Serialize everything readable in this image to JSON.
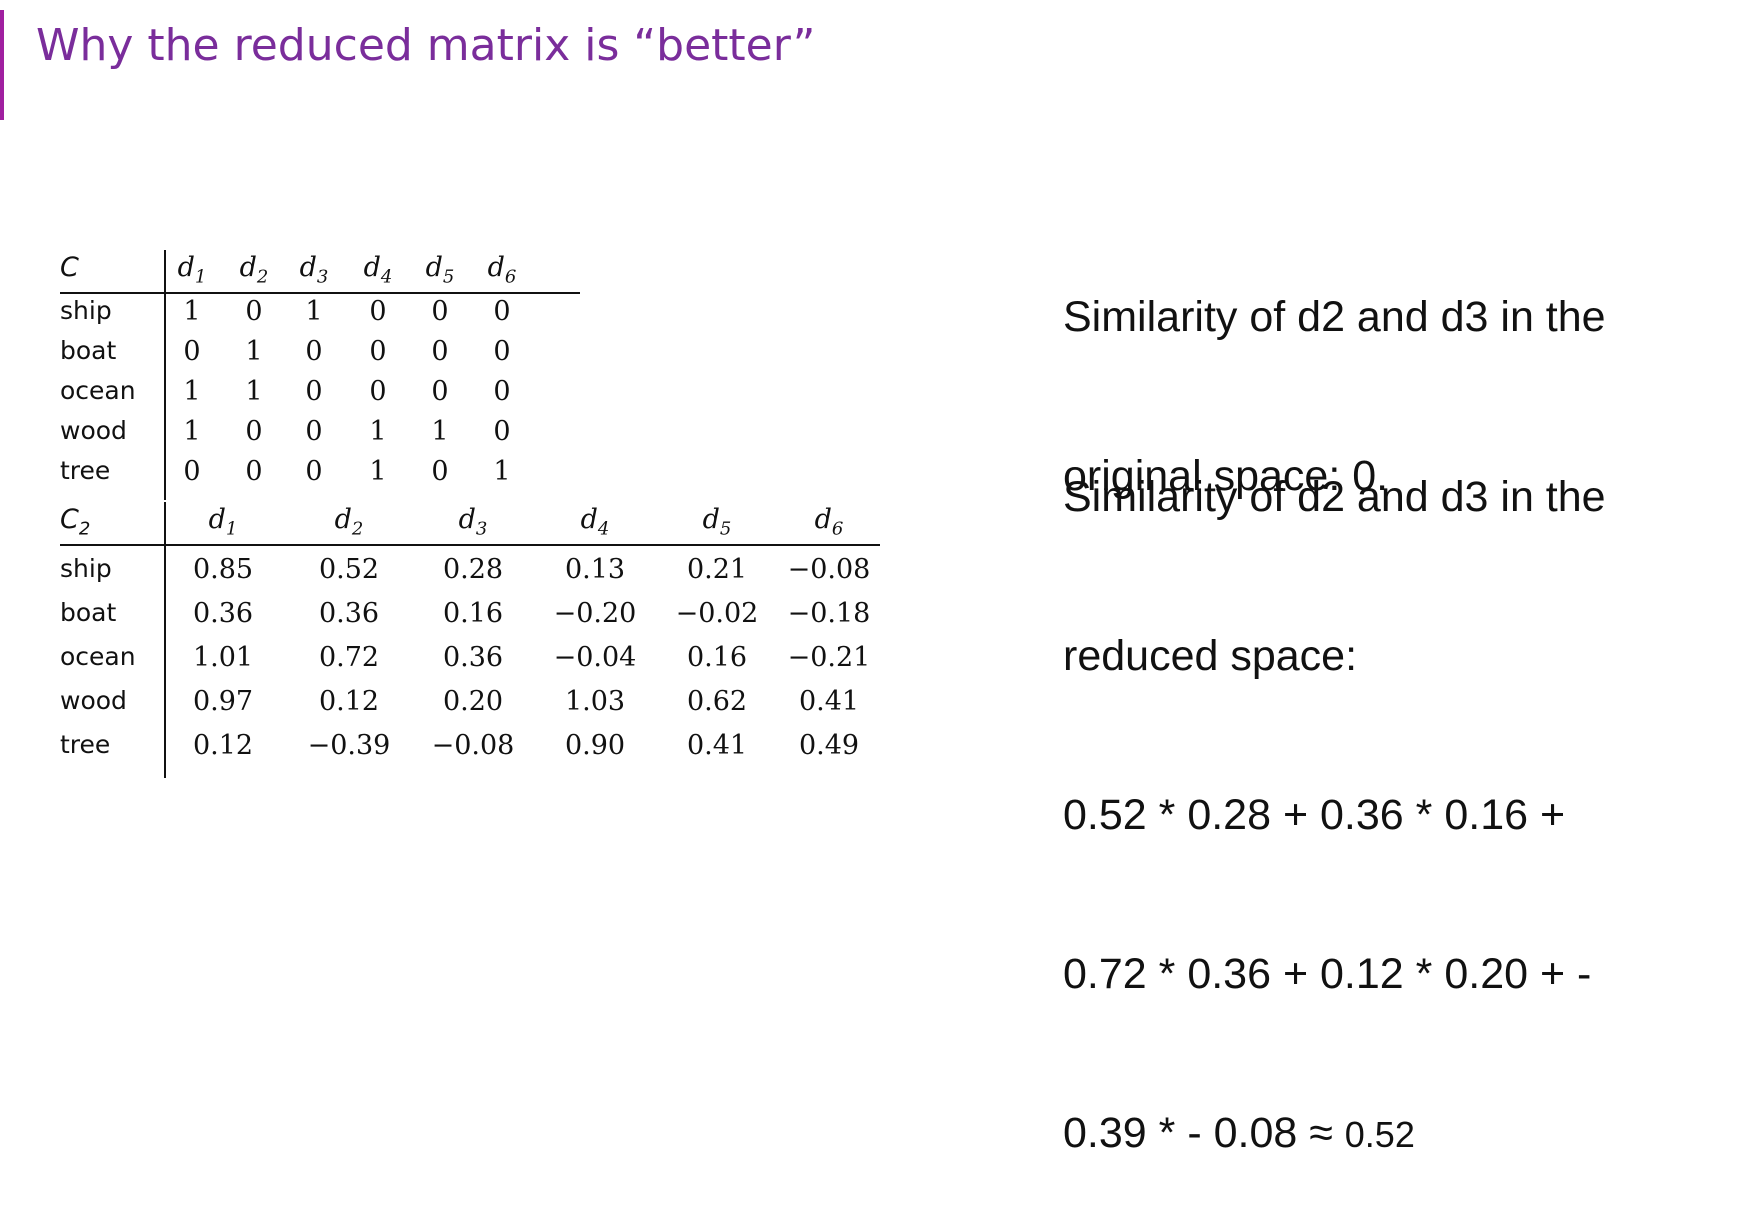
{
  "slide": {
    "title": "Why the reduced matrix is “better”"
  },
  "matrix_c": {
    "name": "C",
    "columns": [
      "d1",
      "d2",
      "d3",
      "d4",
      "d5",
      "d6"
    ],
    "rows": [
      {
        "label": "ship",
        "values": [
          "1",
          "0",
          "1",
          "0",
          "0",
          "0"
        ]
      },
      {
        "label": "boat",
        "values": [
          "0",
          "1",
          "0",
          "0",
          "0",
          "0"
        ]
      },
      {
        "label": "ocean",
        "values": [
          "1",
          "1",
          "0",
          "0",
          "0",
          "0"
        ]
      },
      {
        "label": "wood",
        "values": [
          "1",
          "0",
          "0",
          "1",
          "1",
          "0"
        ]
      },
      {
        "label": "tree",
        "values": [
          "0",
          "0",
          "0",
          "1",
          "0",
          "1"
        ]
      }
    ]
  },
  "matrix_c2": {
    "name": "C",
    "name_sub": "2",
    "columns": [
      "d1",
      "d2",
      "d3",
      "d4",
      "d5",
      "d6"
    ],
    "rows": [
      {
        "label": "ship",
        "values": [
          "0.85",
          "0.52",
          "0.28",
          "0.13",
          "0.21",
          "−0.08"
        ]
      },
      {
        "label": "boat",
        "values": [
          "0.36",
          "0.36",
          "0.16",
          "−0.20",
          "−0.02",
          "−0.18"
        ]
      },
      {
        "label": "ocean",
        "values": [
          "1.01",
          "0.72",
          "0.36",
          "−0.04",
          "0.16",
          "−0.21"
        ]
      },
      {
        "label": "wood",
        "values": [
          "0.97",
          "0.12",
          "0.20",
          "1.03",
          "0.62",
          "0.41"
        ]
      },
      {
        "label": "tree",
        "values": [
          "0.12",
          "−0.39",
          "−0.08",
          "0.90",
          "0.41",
          "0.49"
        ]
      }
    ]
  },
  "notes": {
    "original_line1": "Similarity of d2 and d3 in the",
    "original_line2": "original space: 0.",
    "reduced_line1": "Similarity of d2 and d3 in the",
    "reduced_line2": "reduced space:",
    "calc_line1": "0.52 * 0.28 + 0.36 * 0.16 +",
    "calc_line2": "0.72 * 0.36 + 0.12 * 0.20 + -",
    "calc_line3": "0.39 * - 0.08 ≈ ",
    "calc_result": "0.52"
  }
}
